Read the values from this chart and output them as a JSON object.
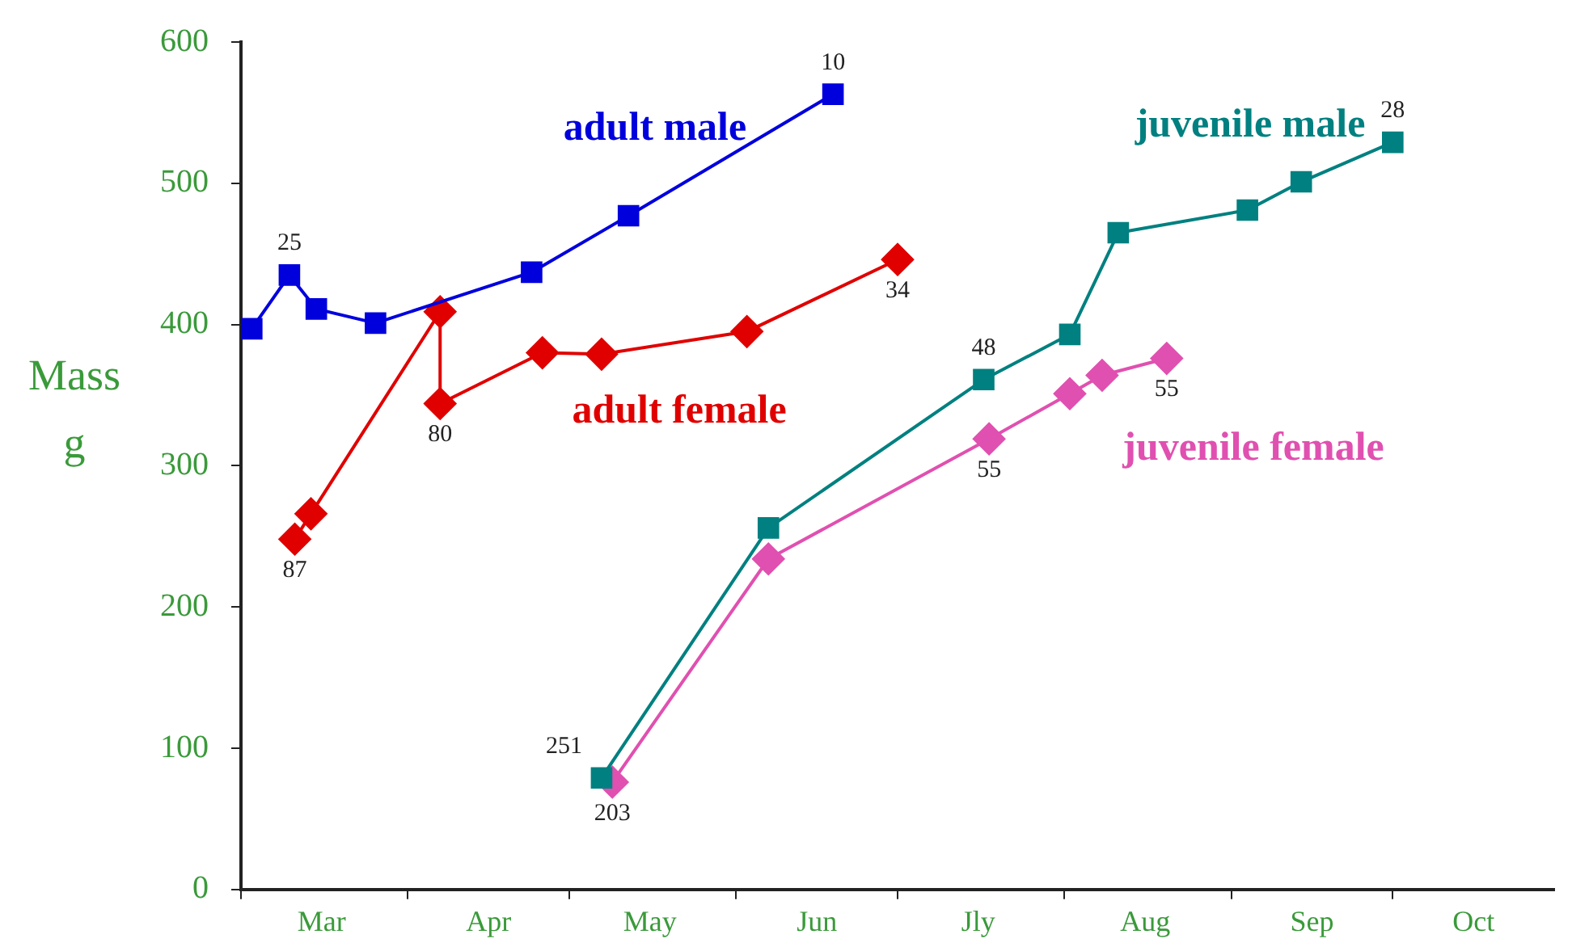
{
  "chart_data": {
    "type": "line",
    "ylabel": "Mass\ng",
    "xlim": [
      "--03-01",
      "--10-31"
    ],
    "xticks": [
      {
        "value": "--03-01",
        "label": null
      },
      {
        "value": "--03-16",
        "label": "Mar"
      },
      {
        "value": "--04-01",
        "label": null
      },
      {
        "value": "--04-16",
        "label": "Apr"
      },
      {
        "value": "--05-01",
        "label": null
      },
      {
        "value": "--05-16",
        "label": "May"
      },
      {
        "value": "--06-01",
        "label": null
      },
      {
        "value": "--06-16",
        "label": "Jun"
      },
      {
        "value": "--07-01",
        "label": null
      },
      {
        "value": "--07-16",
        "label": "Jly"
      },
      {
        "value": "--08-01",
        "label": null
      },
      {
        "value": "--08-16",
        "label": "Aug"
      },
      {
        "value": "--09-01",
        "label": null
      },
      {
        "value": "--09-16",
        "label": "Sep"
      },
      {
        "value": "--10-01",
        "label": null
      },
      {
        "value": "--10-16",
        "label": "Oct"
      }
    ],
    "ylim": [
      0,
      600
    ],
    "yticks": [
      0,
      100,
      200,
      300,
      400,
      500,
      600
    ],
    "grid": false,
    "legend": false,
    "series": [
      {
        "name": "adult male",
        "color": "#0000dd",
        "marker": "square",
        "x": [
          "--03-03",
          "--03-10",
          "--03-15",
          "--03-26",
          "--04-24",
          "--05-12",
          "--06-19"
        ],
        "values": [
          397,
          435,
          411,
          401,
          437,
          477,
          563
        ]
      },
      {
        "name": "adult female",
        "color": "#e00000",
        "marker": "diamond",
        "x": [
          "--03-11",
          "--03-14",
          "--04-07",
          "--04-07",
          "--04-26",
          "--05-07",
          "--06-03",
          "--07-01"
        ],
        "values": [
          248,
          266,
          409,
          344,
          380,
          379,
          395,
          446
        ]
      },
      {
        "name": "juvenile male",
        "color": "#008080",
        "marker": "square",
        "x": [
          "--05-07",
          "--06-07",
          "--07-17",
          "--08-02",
          "--08-11",
          "--09-04",
          "--09-14",
          "--10-01"
        ],
        "values": [
          79,
          256,
          361,
          393,
          465,
          481,
          501,
          529
        ]
      },
      {
        "name": "juvenile female",
        "color": "#e050b0",
        "marker": "diamond",
        "x": [
          "--05-09",
          "--06-07",
          "--07-18",
          "--08-02",
          "--08-08",
          "--08-20"
        ],
        "values": [
          76,
          234,
          319,
          351,
          364,
          376
        ]
      }
    ],
    "annotations": [
      {
        "text": "25",
        "x": "--03-10",
        "y": 435
      },
      {
        "text": "10",
        "x": "--06-19",
        "y": 563
      },
      {
        "text": "87",
        "x": "--03-11",
        "y": 248
      },
      {
        "text": "80",
        "x": "--04-07",
        "y": 344
      },
      {
        "text": "34",
        "x": "--07-01",
        "y": 446
      },
      {
        "text": "251",
        "x": "--05-07",
        "y": 79
      },
      {
        "text": "48",
        "x": "--07-17",
        "y": 361
      },
      {
        "text": "28",
        "x": "--10-01",
        "y": 529
      },
      {
        "text": "203",
        "x": "--05-09",
        "y": 76
      },
      {
        "text": "55",
        "x": "--07-18",
        "y": 319
      },
      {
        "text": "55",
        "x": "--08-20",
        "y": 376
      }
    ]
  }
}
